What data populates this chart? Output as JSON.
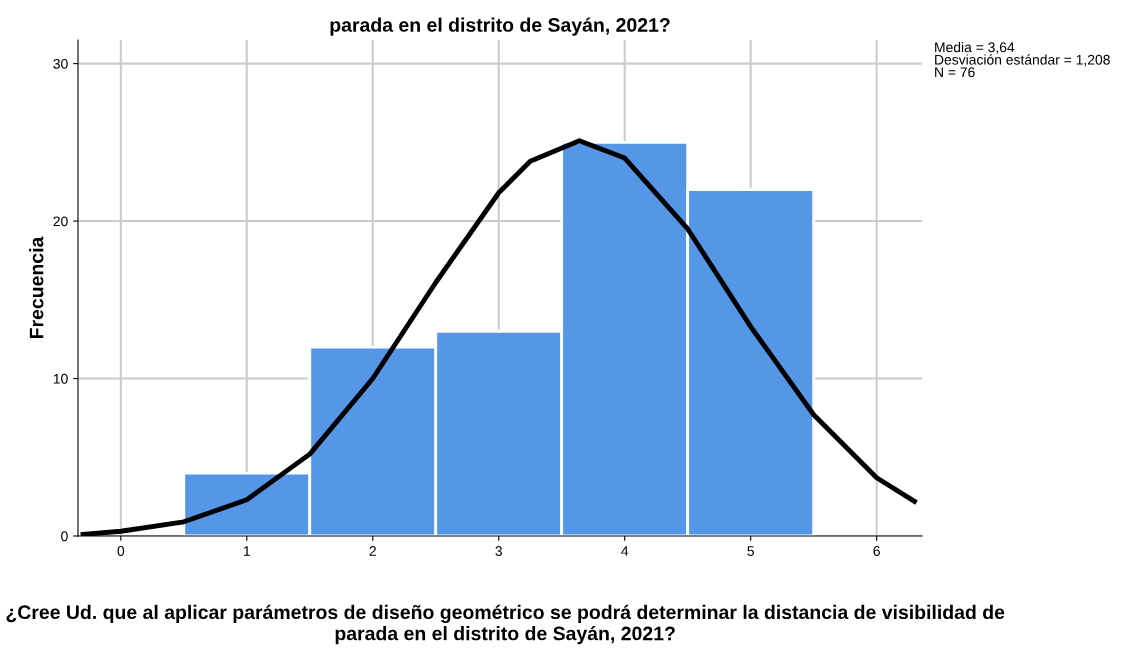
{
  "chart_data": {
    "type": "histogram",
    "title": "parada en el distrito de Sayán, 2021?",
    "xlabel": "¿Cree Ud. que al aplicar parámetros de diseño geométrico se podrá determinar la distancia de visibilidad de parada en el distrito de Sayán, 2021?",
    "ylabel": "Frecuencia",
    "bins": [
      0.5,
      1.5,
      2.5,
      3.5,
      4.5,
      5.5
    ],
    "values": [
      4,
      12,
      13,
      25,
      22
    ],
    "color": "#5596e6",
    "series": [
      {
        "type": "line",
        "color": "#000000",
        "x": [
          -0.3,
          0,
          0.5,
          1,
          1.5,
          2,
          2.5,
          3,
          3.25,
          3.64,
          4,
          4.5,
          5,
          5.5,
          6,
          6.3
        ],
        "values": [
          0.1,
          0.3,
          0.9,
          2.3,
          5.2,
          10,
          16.1,
          21.8,
          23.8,
          25.1,
          24,
          19.5,
          13.3,
          7.7,
          3.7,
          2.2
        ]
      }
    ],
    "xlim": [
      -0.34,
      6.36
    ],
    "ylim": [
      0,
      31.5
    ],
    "xticks": [
      0,
      1,
      2,
      3,
      4,
      5,
      6
    ],
    "yticks": [
      0,
      10,
      20,
      30
    ],
    "grid": true,
    "annotations": [
      "Media = 3,64",
      "Desviación estándar = 1,208",
      "N = 76"
    ]
  }
}
